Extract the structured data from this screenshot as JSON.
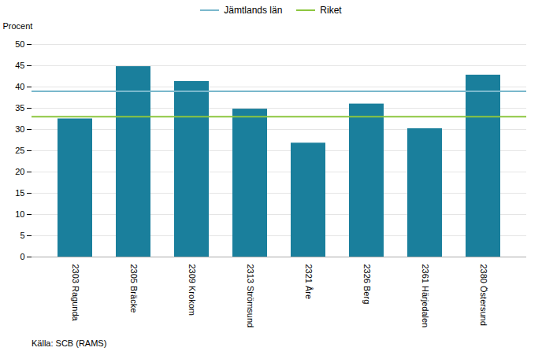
{
  "chart_data": {
    "type": "bar",
    "categories": [
      "2303 Ragunda",
      "2305 Bräcke",
      "2309 Krokom",
      "2313 Strömsund",
      "2321 Åre",
      "2326 Berg",
      "2361 Härjedalen",
      "2380 Östersund"
    ],
    "values": [
      32.5,
      44.8,
      41.3,
      34.8,
      26.8,
      36.0,
      30.2,
      42.8
    ],
    "color": "#1a7f9c",
    "reference_lines": [
      {
        "name": "Jämtlands län",
        "value": 39.0,
        "color": "#7ab8cc"
      },
      {
        "name": "Riket",
        "value": 33.0,
        "color": "#8dc63f"
      }
    ],
    "ylabel": "Procent",
    "ylim": [
      0,
      50
    ],
    "yticks": [
      0,
      5,
      10,
      15,
      20,
      25,
      30,
      35,
      40,
      45,
      50
    ],
    "grid": true,
    "legend": "top",
    "source": "Källa: SCB (RAMS)"
  }
}
